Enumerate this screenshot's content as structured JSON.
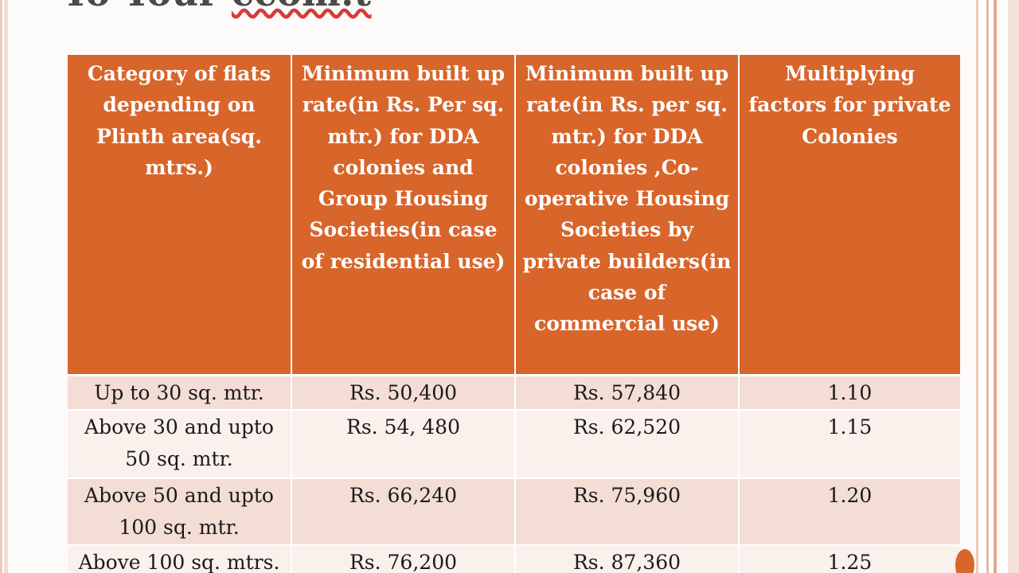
{
  "title_fragment": {
    "visible_text": "To Your",
    "underlined_text": "ccom.t"
  },
  "colors": {
    "header_bg": "#d8652a",
    "row_odd_bg": "#f3ddd5",
    "row_even_bg": "#faf0ec",
    "header_text": "#ffffff",
    "body_text": "#1a1a1a"
  },
  "table": {
    "headers": [
      "Category of flats depending on Plinth area(sq. mtrs.)",
      "Minimum built up rate(in Rs. Per sq. mtr.) for DDA colonies and Group Housing Societies(in case of residential use)",
      "Minimum built up rate(in Rs. per sq. mtr.) for DDA colonies ,Co-operative Housing Societies by private builders(in case of commercial use)",
      "Multiplying factors for private Colonies"
    ],
    "rows": [
      [
        "Up to 30 sq. mtr.",
        "Rs. 50,400",
        "Rs. 57,840",
        "1.10"
      ],
      [
        "Above 30 and upto 50 sq. mtr.",
        "Rs. 54, 480",
        "Rs. 62,520",
        "1.15"
      ],
      [
        "Above 50 and upto 100 sq. mtr.",
        "Rs. 66,240",
        "Rs. 75,960",
        "1.20"
      ],
      [
        "Above 100 sq. mtrs.",
        "Rs. 76,200",
        "Rs. 87,360",
        "1.25"
      ]
    ]
  }
}
